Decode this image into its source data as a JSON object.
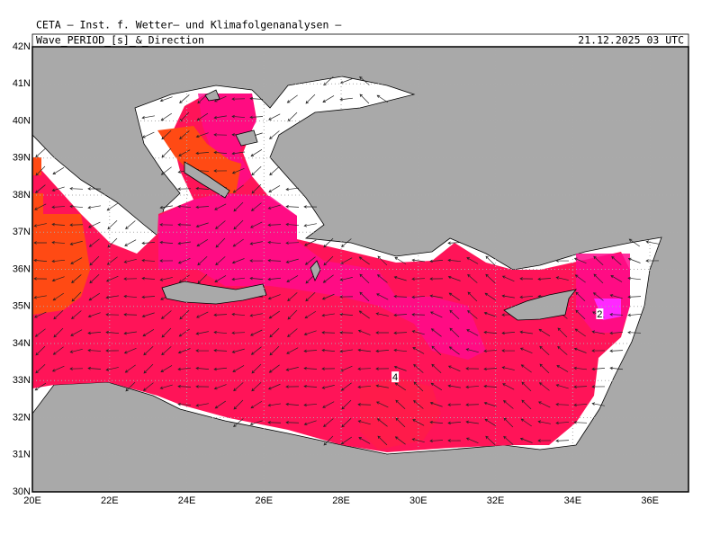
{
  "header": {
    "institute": "CETA – Inst. f. Wetter– und Klimafolgenanalysen –",
    "field": "Wave_PERIOD_[s]_&_Direction",
    "valid_time": "21.12.2025 03 UTC"
  },
  "map": {
    "lon_ticks": [
      {
        "value": 20,
        "label": "20E"
      },
      {
        "value": 22,
        "label": "22E"
      },
      {
        "value": 24,
        "label": "24E"
      },
      {
        "value": 26,
        "label": "26E"
      },
      {
        "value": 28,
        "label": "28E"
      },
      {
        "value": 30,
        "label": "30E"
      },
      {
        "value": 32,
        "label": "32E"
      },
      {
        "value": 34,
        "label": "34E"
      },
      {
        "value": 36,
        "label": "36E"
      }
    ],
    "lat_ticks": [
      {
        "value": 30,
        "label": "30N"
      },
      {
        "value": 31,
        "label": "31N"
      },
      {
        "value": 32,
        "label": "32N"
      },
      {
        "value": 33,
        "label": "33N"
      },
      {
        "value": 34,
        "label": "34N"
      },
      {
        "value": 35,
        "label": "35N"
      },
      {
        "value": 36,
        "label": "36N"
      },
      {
        "value": 37,
        "label": "37N"
      },
      {
        "value": 38,
        "label": "38N"
      },
      {
        "value": 39,
        "label": "39N"
      },
      {
        "value": 40,
        "label": "40N"
      },
      {
        "value": 41,
        "label": "41N"
      },
      {
        "value": 42,
        "label": "42N"
      }
    ],
    "lon_range": [
      20,
      37
    ],
    "lat_range": [
      30,
      42
    ],
    "contour_labels": [
      {
        "label": "4",
        "lon": 29.4,
        "lat": 33.1
      },
      {
        "label": "2",
        "lon": 34.7,
        "lat": 34.8
      }
    ]
  }
}
